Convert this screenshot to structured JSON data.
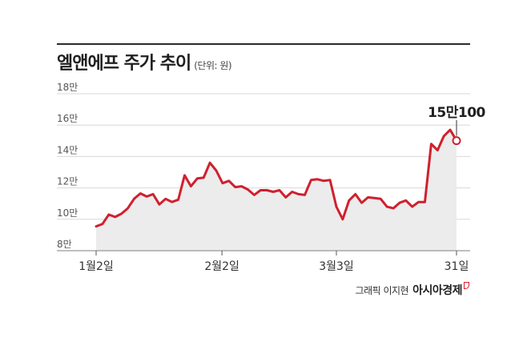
{
  "header": {
    "title": "엘앤에프 주가 추이",
    "unit": "(단위: 원)"
  },
  "annotation": {
    "last_value_label": "15만100"
  },
  "footer": {
    "credit": "그래픽 이지현",
    "brand": "아시아경제"
  },
  "colors": {
    "line": "#d0202e",
    "area": "#ececec",
    "grid": "#d8d8d8",
    "axis": "#999999"
  },
  "chart_data": {
    "type": "area",
    "title": "엘앤에프 주가 추이",
    "unit": "(단위: 원)",
    "ylim": [
      80000,
      180000
    ],
    "yticks": [
      80000,
      100000,
      120000,
      140000,
      160000,
      180000
    ],
    "ytick_labels": [
      "8만",
      "10만",
      "12만",
      "14만",
      "16만",
      "18만"
    ],
    "xtick_labels": [
      "1월2일",
      "2월2일",
      "3월3일",
      "31일"
    ],
    "xtick_index": [
      0,
      22,
      42,
      63
    ],
    "grid": true,
    "series": [
      {
        "values": [
          95500,
          97000,
          103000,
          101500,
          103500,
          107000,
          113000,
          116500,
          114500,
          116000,
          109500,
          113000,
          111000,
          112500,
          128000,
          121000,
          126000,
          126500,
          136000,
          131000,
          123000,
          124500,
          120500,
          121000,
          119000,
          115500,
          118500,
          118500,
          117500,
          118500,
          114000,
          117500,
          116000,
          115500,
          125000,
          125500,
          124500,
          125000,
          108000,
          100000,
          112000,
          116000,
          110500,
          114000,
          113500,
          113000,
          108000,
          107000,
          110500,
          112000,
          108000,
          111000,
          111000,
          148000,
          144000,
          153000,
          157000,
          150100
        ]
      }
    ]
  }
}
